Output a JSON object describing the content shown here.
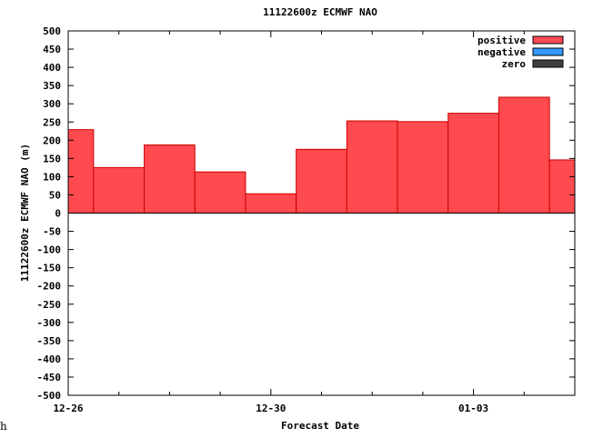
{
  "chart_data": {
    "type": "bar",
    "title": "11122600z ECMWF NAO",
    "xlabel": "Forecast Date",
    "ylabel": "11122600z ECMWF NAO (m)",
    "ylim": [
      -500,
      500
    ],
    "y_tick_step": 50,
    "x_tick_labels": [
      "12-26",
      "12-30",
      "01-03"
    ],
    "x_range_days": [
      0,
      10
    ],
    "x_major_tick_days": [
      0,
      4,
      8
    ],
    "x_minor_tick_days": [
      1,
      2,
      3,
      5,
      6,
      7,
      9
    ],
    "bar_width_days": 1,
    "bar_start_days": [
      -0.5,
      0.5,
      1.5,
      2.5,
      3.5,
      4.5,
      5.5,
      6.5,
      7.5,
      8.5,
      9.5
    ],
    "series": [
      {
        "name": "positive",
        "color": "#ff4a4f",
        "values": [
          229,
          125,
          187,
          113,
          53,
          175,
          253,
          251,
          274,
          318,
          146
        ]
      },
      {
        "name": "negative",
        "color": "#3399ff",
        "values": []
      },
      {
        "name": "zero",
        "color": "#404040",
        "values": []
      }
    ],
    "legend_position": "top-right",
    "grid": false
  },
  "stray_text": "h"
}
